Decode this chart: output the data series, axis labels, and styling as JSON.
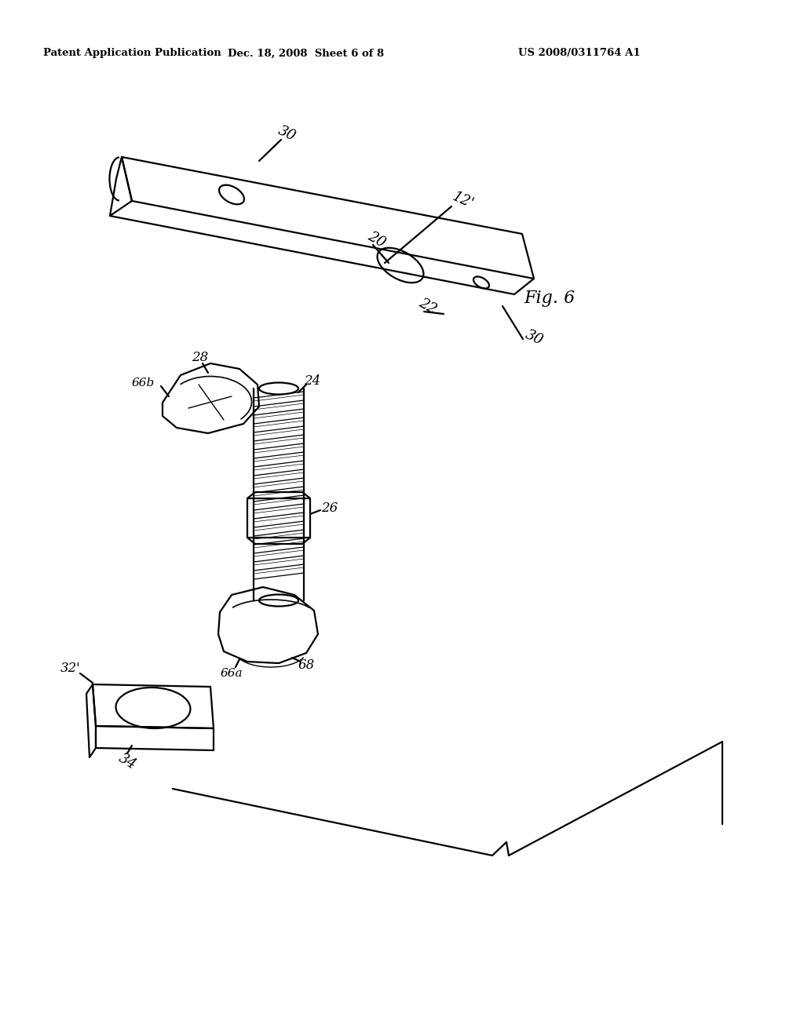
{
  "background_color": "#ffffff",
  "header_left": "Patent Application Publication",
  "header_center": "Dec. 18, 2008  Sheet 6 of 8",
  "header_right": "US 2008/0311764 A1",
  "fig_label": "Fig. 6"
}
